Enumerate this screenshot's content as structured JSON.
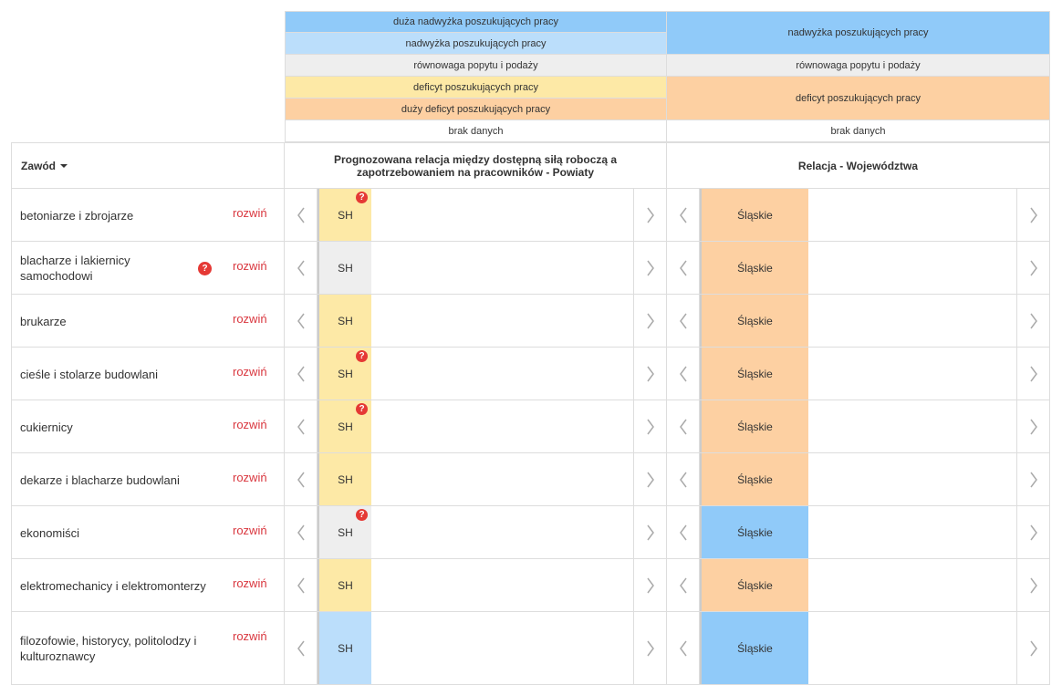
{
  "legend": {
    "powiaty": [
      {
        "label": "duża nadwyżka poszukujących pracy",
        "color": "#90caf9"
      },
      {
        "label": "nadwyżka poszukujących pracy",
        "color": "#bbdefb"
      },
      {
        "label": "równowaga popytu i podaży",
        "color": "#eeeeee"
      },
      {
        "label": "deficyt poszukujących pracy",
        "color": "#fde9a6"
      },
      {
        "label": "duży deficyt poszukujących pracy",
        "color": "#fdd0a2"
      },
      {
        "label": "brak danych",
        "color": "#ffffff"
      }
    ],
    "wojewodztwa": [
      {
        "label": "nadwyżka poszukujących pracy",
        "color": "#90caf9",
        "span": 2
      },
      {
        "label": "równowaga popytu i podaży",
        "color": "#eeeeee",
        "span": 1
      },
      {
        "label": "deficyt poszukujących pracy",
        "color": "#fdd0a2",
        "span": 2
      },
      {
        "label": "brak danych",
        "color": "#ffffff",
        "span": 1
      }
    ]
  },
  "header": {
    "occupation": "Zawód",
    "powiaty": "Prognozowana relacja między dostępną siłą roboczą a zapotrzebowaniem na pracowników - Powiaty",
    "wojewodztwa": "Relacja - Województwa"
  },
  "rows": [
    {
      "name": "betoniarze i zbrojarze",
      "action": "rozwiń",
      "powiat": "SH",
      "powiat_color": "#fde9a6",
      "powiat_help": true,
      "region": "Śląskie",
      "region_color": "#fdd0a2"
    },
    {
      "name": "blacharze i lakiernicy samochodowi",
      "name_help": true,
      "action": "rozwiń",
      "powiat": "SH",
      "powiat_color": "#eeeeee",
      "region": "Śląskie",
      "region_color": "#fdd0a2"
    },
    {
      "name": "brukarze",
      "action": "rozwiń",
      "powiat": "SH",
      "powiat_color": "#fde9a6",
      "region": "Śląskie",
      "region_color": "#fdd0a2"
    },
    {
      "name": "cieśle i stolarze budowlani",
      "action": "rozwiń",
      "powiat": "SH",
      "powiat_color": "#fde9a6",
      "powiat_help": true,
      "region": "Śląskie",
      "region_color": "#fdd0a2"
    },
    {
      "name": "cukiernicy",
      "action": "rozwiń",
      "powiat": "SH",
      "powiat_color": "#fde9a6",
      "powiat_help": true,
      "region": "Śląskie",
      "region_color": "#fdd0a2"
    },
    {
      "name": "dekarze i blacharze budowlani",
      "action": "rozwiń",
      "powiat": "SH",
      "powiat_color": "#fde9a6",
      "region": "Śląskie",
      "region_color": "#fdd0a2"
    },
    {
      "name": "ekonomiści",
      "action": "rozwiń",
      "powiat": "SH",
      "powiat_color": "#eeeeee",
      "powiat_help": true,
      "region": "Śląskie",
      "region_color": "#90caf9"
    },
    {
      "name": "elektromechanicy i elektromonterzy",
      "action": "rozwiń",
      "powiat": "SH",
      "powiat_color": "#fde9a6",
      "region": "Śląskie",
      "region_color": "#fdd0a2"
    },
    {
      "name": "filozofowie, historycy, politolodzy i kulturoznawcy",
      "action": "rozwiń",
      "powiat": "SH",
      "powiat_color": "#bbdefb",
      "region": "Śląskie",
      "region_color": "#90caf9"
    }
  ]
}
